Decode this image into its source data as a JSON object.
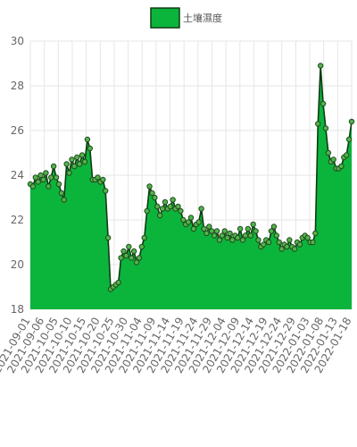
{
  "chart_data": {
    "type": "area",
    "legend": {
      "label": "土壤濕度",
      "position": "top-center"
    },
    "colors": {
      "fill": "#0bb53c",
      "line": "#0f3a12",
      "point_fill": "#54b34b",
      "point_stroke": "#1f4a1f",
      "grid": "#e6e6e6"
    },
    "ylim": [
      18,
      30
    ],
    "yticks": [
      18,
      20,
      22,
      24,
      26,
      28,
      30
    ],
    "grid": true,
    "x_labels": [
      "2021-09-01",
      "2021-09-06",
      "2021-10-05",
      "2021-10-10",
      "2021-10-15",
      "2021-10-20",
      "2021-10-25",
      "2021-10-30",
      "2021-11-04",
      "2021-11-09",
      "2021-11-14",
      "2021-11-19",
      "2021-11-24",
      "2021-11-29",
      "2021-12-04",
      "2021-12-09",
      "2021-12-14",
      "2021-12-19",
      "2021-12-24",
      "2021-12-29",
      "2022-01-03",
      "2022-01-08",
      "2022-01-13",
      "2022-01-18"
    ],
    "values": [
      23.6,
      23.5,
      23.9,
      23.7,
      24.0,
      23.8,
      24.1,
      23.5,
      23.9,
      24.4,
      23.9,
      23.6,
      23.2,
      22.9,
      24.5,
      24.1,
      24.7,
      24.4,
      24.8,
      24.5,
      24.9,
      24.6,
      25.6,
      25.2,
      23.8,
      23.8,
      23.9,
      23.7,
      23.8,
      23.3,
      21.2,
      18.9,
      19.0,
      19.1,
      19.2,
      20.3,
      20.6,
      20.4,
      20.8,
      20.3,
      20.6,
      20.1,
      20.3,
      20.8,
      21.2,
      22.4,
      23.5,
      23.2,
      23.0,
      22.6,
      22.2,
      22.5,
      22.8,
      22.5,
      22.6,
      22.9,
      22.5,
      22.6,
      22.4,
      22.0,
      21.8,
      21.9,
      22.1,
      21.6,
      21.8,
      21.9,
      22.5,
      21.6,
      21.4,
      21.7,
      21.5,
      21.3,
      21.5,
      21.1,
      21.3,
      21.5,
      21.2,
      21.4,
      21.1,
      21.3,
      21.2,
      21.6,
      21.1,
      21.3,
      21.6,
      21.3,
      21.8,
      21.5,
      21.1,
      20.8,
      20.9,
      21.1,
      21.0,
      21.5,
      21.7,
      21.3,
      21.0,
      20.7,
      20.9,
      20.8,
      21.1,
      20.8,
      20.7,
      21.0,
      20.9,
      21.2,
      21.3,
      21.2,
      21.0,
      21.0,
      21.4,
      26.3,
      28.9,
      27.2,
      26.1,
      25.0,
      24.6,
      24.7,
      24.3,
      24.3,
      24.4,
      24.8,
      24.9,
      25.6,
      26.4
    ]
  }
}
